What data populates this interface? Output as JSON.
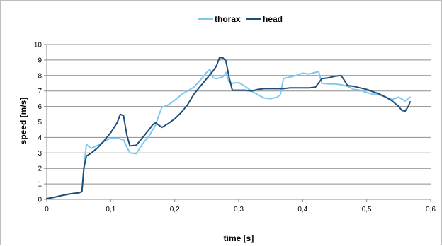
{
  "chart_data": {
    "type": "line",
    "title": "",
    "xlabel": "time [s]",
    "ylabel": "speed [m/s]",
    "xlim": [
      0,
      0.6
    ],
    "ylim": [
      0,
      10
    ],
    "x_ticks": [
      "0",
      "0,1",
      "0,2",
      "0,3",
      "0,4",
      "0,5",
      "0,6"
    ],
    "y_ticks": [
      "0",
      "1",
      "2",
      "3",
      "4",
      "5",
      "6",
      "7",
      "8",
      "9",
      "10"
    ],
    "grid": "horizontal",
    "legend_position": "top-center",
    "series": [
      {
        "name": "thorax",
        "color": "#7ec8f0",
        "x": [
          0.0,
          0.01,
          0.02,
          0.03,
          0.04,
          0.05,
          0.055,
          0.058,
          0.062,
          0.065,
          0.07,
          0.08,
          0.09,
          0.1,
          0.11,
          0.12,
          0.125,
          0.13,
          0.14,
          0.15,
          0.16,
          0.17,
          0.175,
          0.18,
          0.19,
          0.2,
          0.21,
          0.22,
          0.23,
          0.24,
          0.25,
          0.255,
          0.26,
          0.265,
          0.27,
          0.275,
          0.28,
          0.285,
          0.29,
          0.3,
          0.31,
          0.32,
          0.33,
          0.34,
          0.35,
          0.36,
          0.365,
          0.37,
          0.38,
          0.39,
          0.4,
          0.41,
          0.42,
          0.425,
          0.43,
          0.44,
          0.45,
          0.46,
          0.47,
          0.48,
          0.49,
          0.5,
          0.51,
          0.52,
          0.53,
          0.54,
          0.55,
          0.56,
          0.568
        ],
        "y": [
          0.05,
          0.12,
          0.22,
          0.32,
          0.38,
          0.42,
          0.5,
          2.0,
          3.55,
          3.45,
          3.3,
          3.5,
          3.75,
          3.95,
          3.95,
          3.85,
          3.4,
          3.0,
          2.95,
          3.6,
          4.1,
          4.8,
          5.4,
          5.95,
          6.1,
          6.4,
          6.75,
          7.0,
          7.25,
          7.7,
          8.2,
          8.4,
          7.85,
          7.8,
          7.85,
          7.9,
          8.2,
          7.6,
          7.5,
          7.55,
          7.3,
          7.0,
          6.75,
          6.55,
          6.5,
          6.6,
          6.75,
          7.8,
          7.9,
          8.0,
          8.15,
          8.1,
          8.2,
          8.25,
          7.5,
          7.45,
          7.45,
          7.4,
          7.3,
          7.1,
          7.05,
          6.9,
          6.8,
          6.75,
          6.6,
          6.45,
          6.6,
          6.35,
          6.6
        ]
      },
      {
        "name": "head",
        "color": "#1f4e79",
        "x": [
          0.0,
          0.01,
          0.02,
          0.03,
          0.04,
          0.05,
          0.055,
          0.058,
          0.062,
          0.07,
          0.08,
          0.09,
          0.1,
          0.11,
          0.115,
          0.12,
          0.125,
          0.13,
          0.14,
          0.15,
          0.16,
          0.165,
          0.17,
          0.175,
          0.18,
          0.19,
          0.2,
          0.21,
          0.22,
          0.23,
          0.24,
          0.25,
          0.26,
          0.265,
          0.27,
          0.275,
          0.28,
          0.285,
          0.29,
          0.3,
          0.31,
          0.32,
          0.33,
          0.34,
          0.35,
          0.36,
          0.37,
          0.38,
          0.39,
          0.4,
          0.41,
          0.42,
          0.43,
          0.44,
          0.45,
          0.46,
          0.465,
          0.47,
          0.48,
          0.49,
          0.5,
          0.51,
          0.52,
          0.53,
          0.54,
          0.55,
          0.555,
          0.56,
          0.565,
          0.568
        ],
        "y": [
          0.05,
          0.12,
          0.22,
          0.3,
          0.38,
          0.42,
          0.5,
          2.0,
          2.8,
          3.0,
          3.35,
          3.8,
          4.3,
          4.95,
          5.5,
          5.4,
          4.2,
          3.45,
          3.5,
          4.0,
          4.5,
          4.8,
          4.95,
          4.8,
          4.65,
          4.9,
          5.2,
          5.6,
          6.1,
          6.8,
          7.3,
          7.8,
          8.3,
          8.6,
          9.15,
          9.15,
          8.95,
          7.9,
          7.05,
          7.05,
          7.05,
          7.0,
          7.1,
          7.15,
          7.15,
          7.15,
          7.15,
          7.2,
          7.2,
          7.2,
          7.2,
          7.25,
          7.8,
          7.85,
          7.95,
          8.0,
          7.7,
          7.35,
          7.3,
          7.2,
          7.1,
          6.95,
          6.8,
          6.6,
          6.35,
          6.0,
          5.75,
          5.7,
          6.0,
          6.3
        ]
      }
    ]
  }
}
